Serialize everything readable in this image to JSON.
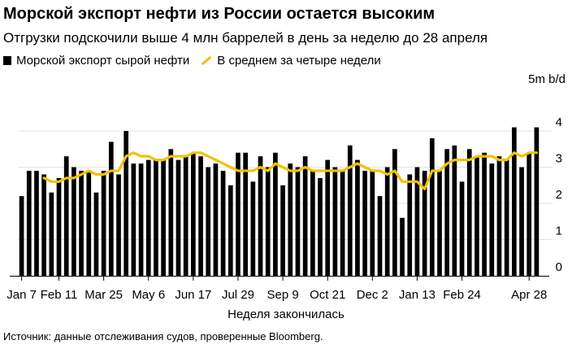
{
  "header": {
    "title": "Морской экспорт нефти из России остается высоким",
    "subtitle": "Отгрузки подскочили выше 4 млн баррелей в день за неделю до 28 апреля"
  },
  "legend": {
    "bars_label": "Морской экспорт сырой нефти",
    "line_label": "В среднем за четыре недели"
  },
  "footer": {
    "source": "Источник: данные отслеживания судов, проверенные Bloomberg."
  },
  "colors": {
    "bars": "#000000",
    "line": "#f2c200",
    "gridline": "#e3e3e3"
  },
  "chart_data": {
    "type": "bar",
    "title": "Морской экспорт нефти из России остается высоким",
    "subtitle": "Отгрузки подскочили выше 4 млн баррелей в день за неделю до 28 апреля",
    "xlabel": "Неделя закончилась",
    "ylabel": "5m b/d",
    "ylim": [
      0,
      5
    ],
    "yticks": [
      0,
      1,
      2,
      3,
      4
    ],
    "y_unit_label": "5m b/d",
    "grid": true,
    "legend_position": "top-left",
    "x_tick_labels": [
      "Jan 7",
      "Feb 11",
      "Mar 25",
      "May 6",
      "Jun 17",
      "Jul 29",
      "Sep 9",
      "Oct 21",
      "Dec 2",
      "Jan 13",
      "Feb 24",
      "Apr 28"
    ],
    "x_tick_indices": [
      0,
      5,
      11,
      17,
      23,
      29,
      35,
      41,
      47,
      53,
      59,
      68
    ],
    "series": [
      {
        "name": "Морской экспорт сырой нефти",
        "type": "bar",
        "values": [
          2.2,
          2.9,
          2.9,
          2.8,
          2.3,
          2.7,
          3.3,
          3.0,
          2.9,
          2.9,
          2.3,
          2.9,
          3.7,
          2.8,
          4.0,
          3.1,
          3.1,
          3.2,
          3.2,
          3.2,
          3.5,
          3.2,
          3.3,
          3.4,
          3.3,
          3.0,
          3.1,
          2.9,
          2.5,
          3.4,
          3.4,
          2.6,
          3.3,
          3.0,
          3.4,
          2.5,
          3.1,
          3.0,
          3.3,
          2.9,
          2.7,
          3.2,
          3.0,
          2.9,
          3.6,
          3.2,
          2.9,
          2.9,
          2.2,
          3.0,
          3.5,
          1.6,
          2.8,
          3.0,
          2.9,
          3.8,
          2.9,
          3.5,
          3.6,
          2.6,
          3.5,
          3.3,
          3.4,
          3.1,
          3.3,
          3.2,
          4.1,
          3.0,
          3.4,
          4.1
        ],
        "values_note": "weekly readings estimated from the chart"
      },
      {
        "name": "В среднем за четыре недели",
        "type": "line",
        "values": [
          null,
          null,
          null,
          2.7,
          2.6,
          2.6,
          2.7,
          2.7,
          2.8,
          2.9,
          2.8,
          2.8,
          2.9,
          2.9,
          3.3,
          3.4,
          3.3,
          3.3,
          3.2,
          3.2,
          3.3,
          3.3,
          3.3,
          3.4,
          3.4,
          3.3,
          3.2,
          3.1,
          3.0,
          2.9,
          2.9,
          2.9,
          3.0,
          2.9,
          3.1,
          3.0,
          2.9,
          2.9,
          3.0,
          2.9,
          2.9,
          2.9,
          2.9,
          2.9,
          3.0,
          3.1,
          3.0,
          2.9,
          2.9,
          2.8,
          2.9,
          2.6,
          2.6,
          2.6,
          2.4,
          2.9,
          2.9,
          3.1,
          3.2,
          3.2,
          3.2,
          3.3,
          3.3,
          3.3,
          3.2,
          3.2,
          3.4,
          3.3,
          3.4,
          3.4
        ]
      }
    ]
  }
}
